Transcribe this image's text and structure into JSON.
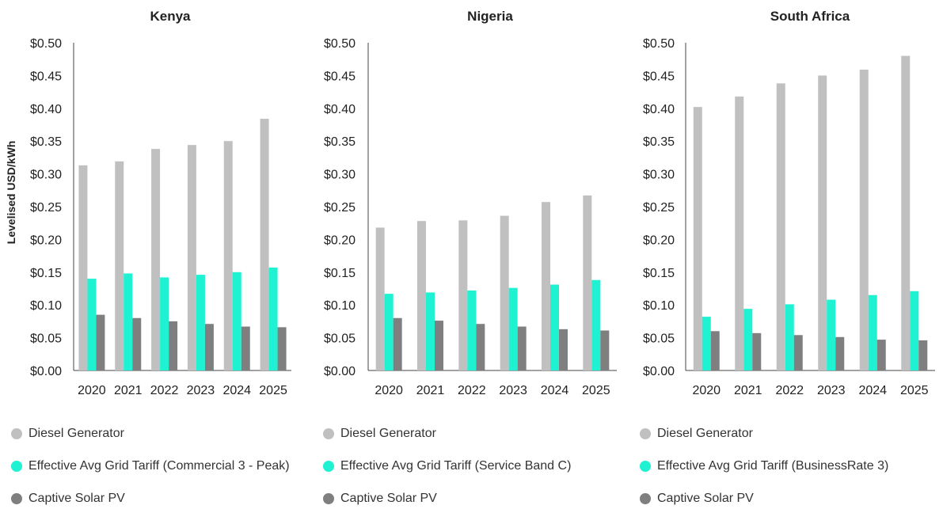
{
  "y_axis_title": "Levelised USD/kWh",
  "colors": {
    "diesel": "#c0c0c0",
    "grid": "#1ef2d2",
    "solar": "#7f7f7f",
    "axis": "#444444",
    "text": "#222222"
  },
  "y_ticks": [
    "$0.00",
    "$0.05",
    "$0.10",
    "$0.15",
    "$0.20",
    "$0.25",
    "$0.30",
    "$0.35",
    "$0.40",
    "$0.45",
    "$0.50"
  ],
  "chart_data": [
    {
      "type": "bar",
      "title": "Kenya",
      "categories": [
        "2020",
        "2021",
        "2022",
        "2023",
        "2024",
        "2025"
      ],
      "ylim": [
        0,
        0.5
      ],
      "ylabel": "Levelised USD/kWh",
      "series": [
        {
          "name": "Diesel Generator",
          "values": [
            0.313,
            0.319,
            0.338,
            0.344,
            0.35,
            0.384
          ]
        },
        {
          "name": "Effective Avg Grid Tariff (Commercial 3 - Peak)",
          "values": [
            0.14,
            0.148,
            0.142,
            0.146,
            0.15,
            0.157
          ]
        },
        {
          "name": "Captive Solar PV",
          "values": [
            0.085,
            0.08,
            0.075,
            0.071,
            0.067,
            0.066
          ]
        }
      ]
    },
    {
      "type": "bar",
      "title": "Nigeria",
      "categories": [
        "2020",
        "2021",
        "2022",
        "2023",
        "2024",
        "2025"
      ],
      "ylim": [
        0,
        0.5
      ],
      "series": [
        {
          "name": "Diesel Generator",
          "values": [
            0.218,
            0.228,
            0.229,
            0.236,
            0.257,
            0.267
          ]
        },
        {
          "name": "Effective Avg Grid Tariff (Service Band C)",
          "values": [
            0.117,
            0.119,
            0.122,
            0.126,
            0.131,
            0.138
          ]
        },
        {
          "name": "Captive Solar PV",
          "values": [
            0.08,
            0.076,
            0.071,
            0.067,
            0.063,
            0.061
          ]
        }
      ]
    },
    {
      "type": "bar",
      "title": "South Africa",
      "categories": [
        "2020",
        "2021",
        "2022",
        "2023",
        "2024",
        "2025"
      ],
      "ylim": [
        0,
        0.5
      ],
      "series": [
        {
          "name": "Diesel Generator",
          "values": [
            0.402,
            0.418,
            0.438,
            0.45,
            0.459,
            0.48
          ]
        },
        {
          "name": "Effective Avg Grid Tariff (BusinessRate 3)",
          "values": [
            0.082,
            0.094,
            0.101,
            0.108,
            0.115,
            0.121
          ]
        },
        {
          "name": "Captive Solar PV",
          "values": [
            0.06,
            0.057,
            0.054,
            0.051,
            0.047,
            0.046
          ]
        }
      ]
    }
  ]
}
